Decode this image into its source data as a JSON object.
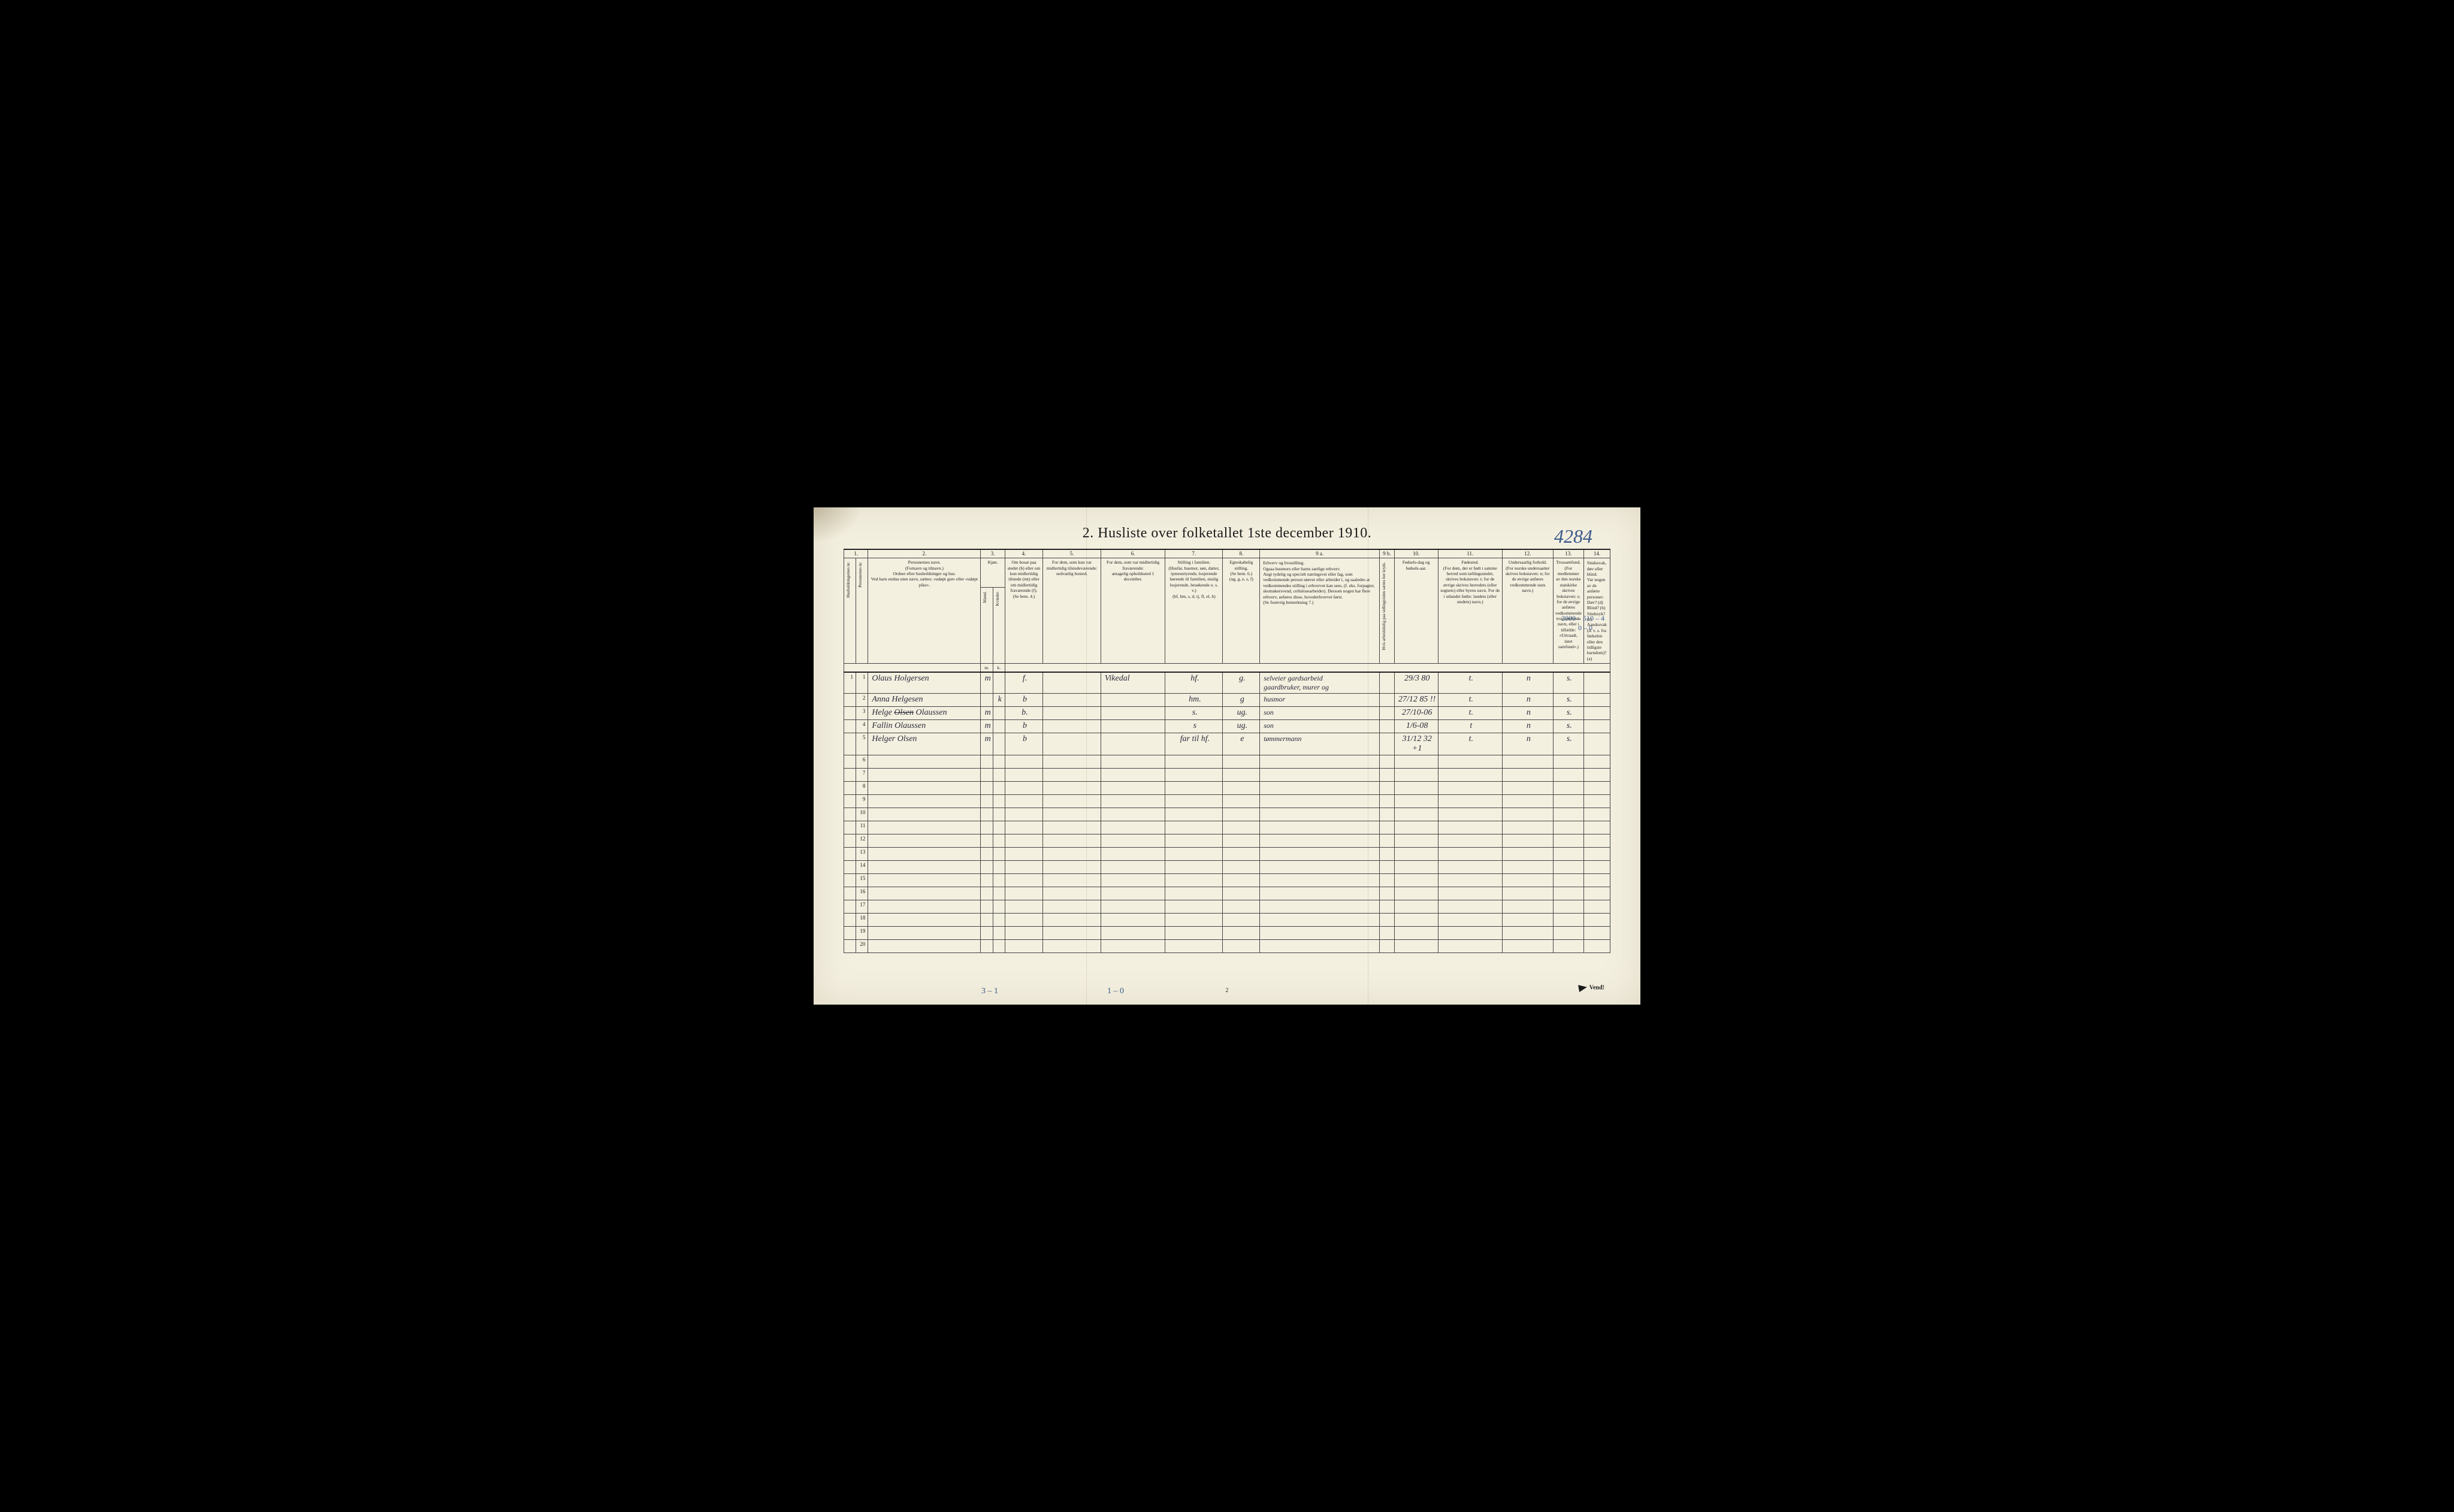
{
  "title": "2.  Husliste over folketallet 1ste december 1910.",
  "top_right_note": "4284",
  "page_number": "2",
  "vend_label": "Vend!",
  "margin_notes": {
    "left_bottom": "3 – 1",
    "mid_bottom": "1 – 0",
    "right_top": "2000 – 510 – 4",
    "right_top2": "0 – 0"
  },
  "column_numbers": [
    "1.",
    "2.",
    "3.",
    "4.",
    "5.",
    "6.",
    "7.",
    "8.",
    "9 a.",
    "9 b.",
    "10.",
    "11.",
    "12.",
    "13.",
    "14."
  ],
  "headers": {
    "c1a": "Husholdningernes nr.",
    "c1b": "Personernes nr.",
    "c2": "Personernes navn.\n(Fornavn og tilnavn.)\nOrdnet efter husholdninger og hus.\nVed barn endnu uten navn, sættes: «udøpt gut» eller «udøpt pike».",
    "c3": "Kjøn.",
    "c3a": "Mænd.",
    "c3b": "Kvinder.",
    "c4": "Om bosat paa stedet (b) eller om kun midlertidig tilstede (mt) eller om midlertidig fraværende (f).\n(Se bem. 4.)",
    "c5": "For dem, som kun var midlertidig tilstedeværende:\nsedvanlig bosted.",
    "c6": "For dem, som var midlertidig fraværende:\nantagelig opholdssted 1 december.",
    "c7": "Stilling i familien.\n(Husfar, husmor, søn, datter, tjenestetyende, losjerende hørende til familien, enslig losjerende, besøkende o. s. v.)\n(hf, hm, s, d, tj, fl, el, b)",
    "c8": "Egteskabelig stilling.\n(Se bem. 6.)\n(ug, g, e, s, f)",
    "c9a": "Erhverv og livsstilling.\nOgsaa husmors eller barns særlige erhverv.\nAngi tydelig og specielt næringsvei eller fag, som vedkommende person utøver eller arbeider i, og saaledes at vedkommendes stilling i erhvervet kan sees, (f. eks. forpagter, skomakersvend, cellulosearbeider). Dersom nogen har flere erhverv, anføres disse, hovederhvervet først.\n(Se forøvrig bemerkning 7.)",
    "c9b": "Hvis arbeidsledig paa tællingstiden sættes her kryds.",
    "c10": "Fødsels-dag og fødsels-aar.",
    "c11": "Fødested.\n(For dem, der er født i samme herred som tællingsstedet, skrives bokstaven: t; for de øvrige skrives herredets (eller sognets) eller byens navn. For de i utlandet fødte: landets (eller stedets) navn.)",
    "c12": "Undersaatlig forhold.\n(For norske undersaatter skrives bokstaven: n; for de øvrige anføres vedkommende stats navn.)",
    "c13": "Trossamfund.\n(For medlemmer av den norske statskirke skrives bokstaven: s; for de øvrige anføres vedkommende trossamfunds navn, eller i tilfælde: «Uttraadt, intet samfund».)",
    "c14": "Sindssvak, døv eller blind.\nVar nogen av de anførte personer:\nDøv?  (d)\nBlind?  (b)\nSindssyk?  (s)\nAandssvak (d. v. s. fra fødselen eller den tidligste barndom)?  (a)"
  },
  "sub_m": "m.",
  "sub_k": "k.",
  "rows": [
    {
      "n": "1",
      "name": "Olaus Holgersen",
      "m": "m",
      "k": "",
      "bf": "f.",
      "c5": "",
      "c6": "Vikedal",
      "c7": "hf.",
      "c8": "g.",
      "c9": "selveier  gardsarbeid\ngaardbruker, murer og",
      "c10": "29/3 80",
      "c11": "t.",
      "c12": "n",
      "c13": "s.",
      "c14": ""
    },
    {
      "n": "2",
      "name": "Anna Helgesen",
      "m": "",
      "k": "k",
      "bf": "b",
      "c5": "",
      "c6": "",
      "c7": "hm.",
      "c8": "g",
      "c9": "husmor",
      "c10": "27/12 85 !!",
      "c11": "t.",
      "c12": "n",
      "c13": "s.",
      "c14": ""
    },
    {
      "n": "3",
      "name": "Helge Olsen Olaussen",
      "m": "m",
      "k": "",
      "bf": "b.",
      "c5": "",
      "c6": "",
      "c7": "s.",
      "c8": "ug.",
      "c9": "son",
      "c10": "27/10-06",
      "c11": "t.",
      "c12": "n",
      "c13": "s.",
      "c14": ""
    },
    {
      "n": "4",
      "name": "Fallin Olaussen",
      "m": "m",
      "k": "",
      "bf": "b",
      "c5": "",
      "c6": "",
      "c7": "s",
      "c8": "ug.",
      "c9": "son",
      "c10": "1/6-08",
      "c11": "t",
      "c12": "n",
      "c13": "s.",
      "c14": ""
    },
    {
      "n": "5",
      "name": "Helger Olsen",
      "m": "m",
      "k": "",
      "bf": "b",
      "c5": "",
      "c6": "",
      "c7": "far til  hf.",
      "c8": "e",
      "c9": "tømmermann",
      "c10": "31/12 32 +1",
      "c11": "t.",
      "c12": "n",
      "c13": "s.",
      "c14": ""
    }
  ],
  "empty_rows": [
    "6",
    "7",
    "8",
    "9",
    "10",
    "11",
    "12",
    "13",
    "14",
    "15",
    "16",
    "17",
    "18",
    "19",
    "20"
  ],
  "colors": {
    "paper": "#f4f0e0",
    "ink": "#1a1a1a",
    "pencil_blue": "#3a5a8a",
    "handwriting": "#2a2a3a"
  },
  "col_widths_pct": [
    1.6,
    1.6,
    16,
    1.6,
    1.6,
    5.2,
    8,
    9,
    8,
    5,
    17,
    2,
    6,
    9,
    7,
    7,
    10
  ]
}
